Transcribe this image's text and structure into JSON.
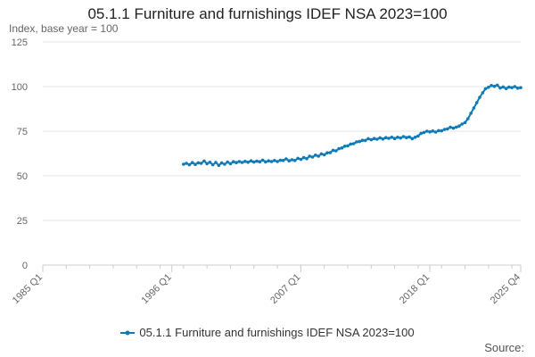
{
  "chart_data": {
    "type": "line",
    "title": "05.1.1 Furniture and furnishings IDEF NSA 2023=100",
    "subtitle": "Index, base year = 100",
    "xlabel": "",
    "ylabel": "",
    "ylim": [
      0,
      125
    ],
    "y_ticks": [
      "0",
      "25",
      "50",
      "75",
      "100",
      "125"
    ],
    "x_ticks": [
      "1985 Q1",
      "1996 Q1",
      "2007 Q1",
      "2018 Q1",
      "2025 Q4"
    ],
    "grid": true,
    "legend_position": "bottom",
    "colors": {
      "series": "#0f7ab8",
      "grid": "#e6e6e6",
      "axis": "#cccccc"
    },
    "series": [
      {
        "name": "05.1.1 Furniture and furnishings IDEF NSA 2023=100",
        "points": [
          [
            "1997 Q1",
            56.5
          ],
          [
            "1997 Q2",
            57.0
          ],
          [
            "1997 Q3",
            56.2
          ],
          [
            "1997 Q4",
            57.4
          ],
          [
            "1998 Q1",
            56.4
          ],
          [
            "1998 Q2",
            57.3
          ],
          [
            "1998 Q3",
            57.0
          ],
          [
            "1998 Q4",
            58.3
          ],
          [
            "1999 Q1",
            56.8
          ],
          [
            "1999 Q2",
            57.6
          ],
          [
            "1999 Q3",
            56.2
          ],
          [
            "1999 Q4",
            57.5
          ],
          [
            "2000 Q1",
            55.9
          ],
          [
            "2000 Q2",
            57.2
          ],
          [
            "2000 Q3",
            56.5
          ],
          [
            "2000 Q4",
            57.7
          ],
          [
            "2001 Q1",
            56.8
          ],
          [
            "2001 Q2",
            57.9
          ],
          [
            "2001 Q3",
            57.4
          ],
          [
            "2001 Q4",
            58.0
          ],
          [
            "2002 Q1",
            57.5
          ],
          [
            "2002 Q2",
            58.1
          ],
          [
            "2002 Q3",
            57.6
          ],
          [
            "2002 Q4",
            58.4
          ],
          [
            "2003 Q1",
            57.7
          ],
          [
            "2003 Q2",
            58.2
          ],
          [
            "2003 Q3",
            57.9
          ],
          [
            "2003 Q4",
            58.8
          ],
          [
            "2004 Q1",
            57.8
          ],
          [
            "2004 Q2",
            58.4
          ],
          [
            "2004 Q3",
            58.0
          ],
          [
            "2004 Q4",
            58.6
          ],
          [
            "2005 Q1",
            58.0
          ],
          [
            "2005 Q2",
            58.7
          ],
          [
            "2005 Q3",
            58.6
          ],
          [
            "2005 Q4",
            59.5
          ],
          [
            "2006 Q1",
            58.4
          ],
          [
            "2006 Q2",
            59.0
          ],
          [
            "2006 Q3",
            58.6
          ],
          [
            "2006 Q4",
            59.8
          ],
          [
            "2007 Q1",
            59.2
          ],
          [
            "2007 Q2",
            60.2
          ],
          [
            "2007 Q3",
            59.6
          ],
          [
            "2007 Q4",
            61.0
          ],
          [
            "2008 Q1",
            60.5
          ],
          [
            "2008 Q2",
            61.6
          ],
          [
            "2008 Q3",
            61.0
          ],
          [
            "2008 Q4",
            62.3
          ],
          [
            "2009 Q1",
            61.8
          ],
          [
            "2009 Q2",
            62.9
          ],
          [
            "2009 Q3",
            63.0
          ],
          [
            "2009 Q4",
            64.3
          ],
          [
            "2010 Q1",
            64.0
          ],
          [
            "2010 Q2",
            65.2
          ],
          [
            "2010 Q3",
            65.6
          ],
          [
            "2010 Q4",
            66.6
          ],
          [
            "2011 Q1",
            66.8
          ],
          [
            "2011 Q2",
            67.8
          ],
          [
            "2011 Q3",
            68.0
          ],
          [
            "2011 Q4",
            69.0
          ],
          [
            "2012 Q1",
            69.2
          ],
          [
            "2012 Q2",
            69.9
          ],
          [
            "2012 Q3",
            69.8
          ],
          [
            "2012 Q4",
            70.8
          ],
          [
            "2013 Q1",
            70.2
          ],
          [
            "2013 Q2",
            70.9
          ],
          [
            "2013 Q3",
            70.5
          ],
          [
            "2013 Q4",
            71.3
          ],
          [
            "2014 Q1",
            70.6
          ],
          [
            "2014 Q2",
            71.4
          ],
          [
            "2014 Q3",
            71.0
          ],
          [
            "2014 Q4",
            71.6
          ],
          [
            "2015 Q1",
            70.9
          ],
          [
            "2015 Q2",
            71.6
          ],
          [
            "2015 Q3",
            71.2
          ],
          [
            "2015 Q4",
            72.0
          ],
          [
            "2016 Q1",
            71.4
          ],
          [
            "2016 Q2",
            71.8
          ],
          [
            "2016 Q3",
            70.8
          ],
          [
            "2016 Q4",
            71.6
          ],
          [
            "2017 Q1",
            72.3
          ],
          [
            "2017 Q2",
            73.8
          ],
          [
            "2017 Q3",
            74.3
          ],
          [
            "2017 Q4",
            75.0
          ],
          [
            "2018 Q1",
            74.6
          ],
          [
            "2018 Q2",
            75.1
          ],
          [
            "2018 Q3",
            74.5
          ],
          [
            "2018 Q4",
            75.3
          ],
          [
            "2019 Q1",
            75.2
          ],
          [
            "2019 Q2",
            76.0
          ],
          [
            "2019 Q3",
            76.3
          ],
          [
            "2019 Q4",
            77.2
          ],
          [
            "2020 Q1",
            76.7
          ],
          [
            "2020 Q2",
            77.3
          ],
          [
            "2020 Q3",
            77.9
          ],
          [
            "2020 Q4",
            79.0
          ],
          [
            "2021 Q1",
            79.8
          ],
          [
            "2021 Q2",
            82.0
          ],
          [
            "2021 Q3",
            85.0
          ],
          [
            "2021 Q4",
            88.0
          ],
          [
            "2022 Q1",
            91.0
          ],
          [
            "2022 Q2",
            94.0
          ],
          [
            "2022 Q3",
            96.5
          ],
          [
            "2022 Q4",
            98.8
          ],
          [
            "2023 Q1",
            99.6
          ],
          [
            "2023 Q2",
            100.6
          ],
          [
            "2023 Q3",
            100.1
          ],
          [
            "2023 Q4",
            100.8
          ],
          [
            "2024 Q1",
            99.2
          ],
          [
            "2024 Q2",
            99.8
          ],
          [
            "2024 Q3",
            98.9
          ],
          [
            "2024 Q4",
            99.7
          ],
          [
            "2025 Q1",
            99.4
          ],
          [
            "2025 Q2",
            100.0
          ],
          [
            "2025 Q3",
            99.1
          ],
          [
            "2025 Q4",
            99.4
          ]
        ]
      }
    ]
  },
  "footer": {
    "source_label": "Source:"
  }
}
